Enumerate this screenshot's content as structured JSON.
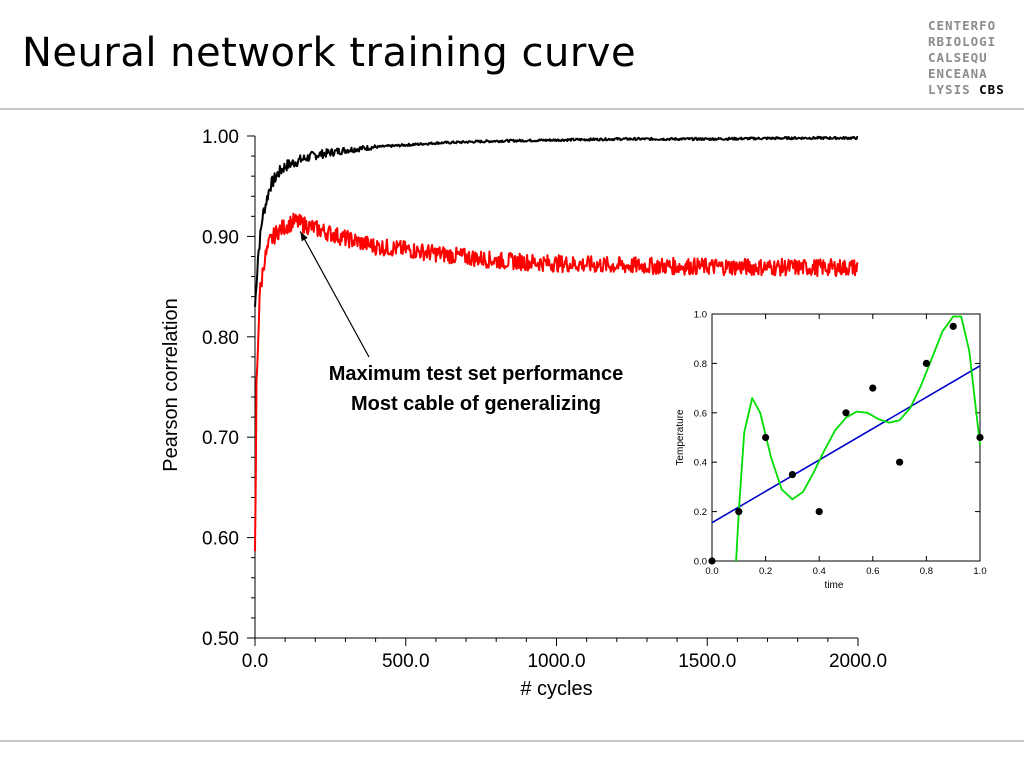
{
  "header": {
    "title": "Neural network training curve",
    "logo_rows": [
      "CENTERFO",
      "RBIOLOGI",
      "CALSEQU",
      "ENCEANA"
    ],
    "logo_last_gray": "LYSIS ",
    "logo_last_dark": "CBS"
  },
  "colors": {
    "train": "#000000",
    "test": "#ff0000",
    "inset_fit": "#00dd00",
    "inset_line": "#0000cc"
  },
  "annotation": {
    "line1": "Maximum test set performance",
    "line2": "Most cable of generalizing"
  },
  "chart_data": [
    {
      "type": "line",
      "xlabel": "# cycles",
      "ylabel": "Pearson correlation",
      "xlim": [
        0,
        2000
      ],
      "ylim": [
        0.5,
        1.0
      ],
      "x_ticks": [
        "0.0",
        "500.0",
        "1000.0",
        "1500.0",
        "2000.0"
      ],
      "y_ticks": [
        "0.50",
        "0.60",
        "0.70",
        "0.80",
        "0.90",
        "1.00"
      ],
      "grid": false,
      "series": [
        {
          "color": "#000000",
          "x": [
            0,
            10,
            25,
            50,
            75,
            100,
            150,
            200,
            300,
            400,
            500,
            600,
            800,
            1000,
            1200,
            1500,
            1800,
            2000
          ],
          "y": [
            0.83,
            0.88,
            0.92,
            0.95,
            0.962,
            0.97,
            0.976,
            0.981,
            0.986,
            0.989,
            0.991,
            0.993,
            0.995,
            0.996,
            0.997,
            0.997,
            0.998,
            0.998
          ]
        },
        {
          "color": "#ff0000",
          "x": [
            0,
            5,
            15,
            30,
            50,
            75,
            100,
            130,
            150,
            200,
            300,
            400,
            500,
            600,
            800,
            1000,
            1200,
            1500,
            1800,
            2000
          ],
          "y": [
            0.58,
            0.75,
            0.84,
            0.875,
            0.895,
            0.905,
            0.91,
            0.915,
            0.913,
            0.908,
            0.898,
            0.89,
            0.887,
            0.883,
            0.876,
            0.873,
            0.871,
            0.87,
            0.869,
            0.869
          ]
        }
      ]
    },
    {
      "type": "scatter",
      "xlabel": "time",
      "ylabel": "Temperature",
      "xlim": [
        0,
        1
      ],
      "ylim": [
        0,
        1
      ],
      "x_ticks": [
        "0.0",
        "0.2",
        "0.4",
        "0.6",
        "0.8",
        "1.0"
      ],
      "y_ticks": [
        "0.0",
        "0.2",
        "0.4",
        "0.6",
        "0.8",
        "1.0"
      ],
      "points": {
        "x": [
          0.0,
          0.1,
          0.2,
          0.3,
          0.4,
          0.5,
          0.6,
          0.7,
          0.8,
          0.9,
          1.0
        ],
        "y": [
          0.0,
          0.2,
          0.5,
          0.35,
          0.2,
          0.6,
          0.7,
          0.4,
          0.8,
          0.95,
          0.5
        ]
      },
      "linear_fit": {
        "x": [
          0.0,
          1.0
        ],
        "y": [
          0.155,
          0.79
        ]
      },
      "curve_fit": {
        "x": [
          0.09,
          0.1,
          0.12,
          0.15,
          0.18,
          0.22,
          0.26,
          0.3,
          0.34,
          0.38,
          0.42,
          0.46,
          0.5,
          0.54,
          0.58,
          0.62,
          0.66,
          0.7,
          0.74,
          0.78,
          0.82,
          0.86,
          0.9,
          0.93,
          0.96,
          1.0
        ],
        "y": [
          0.0,
          0.2,
          0.52,
          0.66,
          0.6,
          0.42,
          0.29,
          0.25,
          0.28,
          0.36,
          0.45,
          0.53,
          0.58,
          0.605,
          0.6,
          0.575,
          0.56,
          0.57,
          0.62,
          0.71,
          0.82,
          0.93,
          0.99,
          0.99,
          0.85,
          0.47
        ]
      }
    }
  ]
}
